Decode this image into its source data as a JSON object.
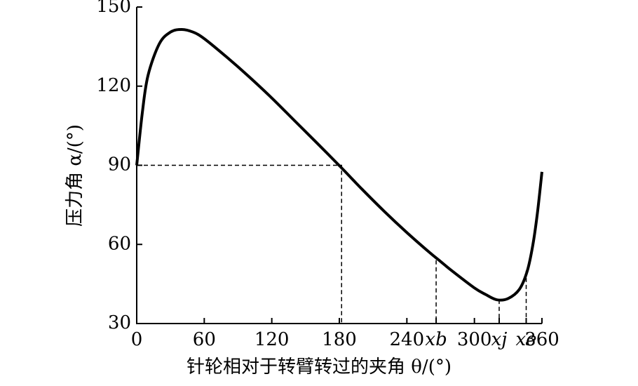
{
  "chart_data": {
    "type": "line",
    "xlabel": "针轮相对于转臂转过的夹角 θ/(°)",
    "ylabel": "压力角 α/(°)",
    "x": [
      0,
      5,
      10,
      20,
      30,
      40,
      50,
      60,
      80,
      100,
      120,
      140,
      160,
      182,
      200,
      220,
      240,
      260,
      270,
      280,
      300,
      310,
      320,
      330,
      340,
      347,
      352,
      356,
      360
    ],
    "series": [
      {
        "color": "#000000",
        "values": [
          90,
          110,
          124,
          136,
          140.5,
          141.5,
          140.5,
          138,
          131,
          123.5,
          115.5,
          107,
          98.5,
          89,
          81,
          72.5,
          64.5,
          57,
          53.5,
          50,
          43.5,
          41,
          39,
          39.5,
          43,
          50,
          60,
          72,
          87.5
        ]
      }
    ],
    "xlim": [
      0,
      360
    ],
    "xticks": [
      0,
      60,
      120,
      180,
      240,
      {
        "value": 266,
        "label": "xb"
      },
      300,
      {
        "value": 322,
        "label": "xj"
      },
      {
        "value": 346,
        "label": "xe"
      },
      360
    ],
    "ylim": [
      30,
      150
    ],
    "yticks": [
      30,
      60,
      90,
      120,
      150
    ],
    "crossing": {
      "x": 182,
      "y": 90
    },
    "guides": [
      {
        "x": 266,
        "y": 54
      },
      {
        "x": 322,
        "y": 39
      },
      {
        "x": 346,
        "y": 50
      }
    ]
  }
}
